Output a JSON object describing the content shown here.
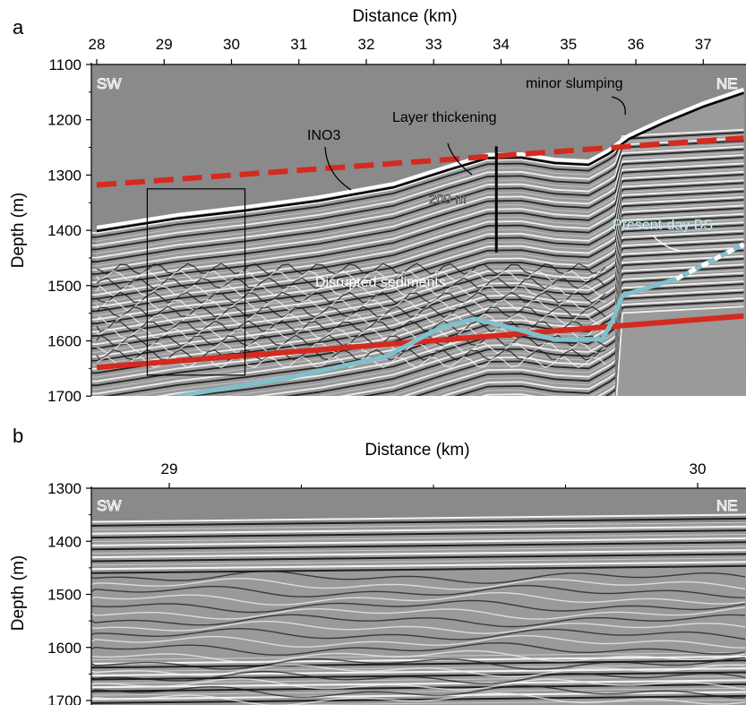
{
  "figure": {
    "panel_a": {
      "letter": "a",
      "x_title": "Distance (km)",
      "y_title": "Depth (m)",
      "x_ticks": [
        "28",
        "29",
        "30",
        "31",
        "32",
        "33",
        "34",
        "35",
        "36",
        "37"
      ],
      "y_ticks": [
        "1100",
        "1200",
        "1300",
        "1400",
        "1500",
        "1600",
        "1700"
      ],
      "corner_left": "SW",
      "corner_right": "NE",
      "annotations": {
        "minor_slumping": "minor slumping",
        "layer_thickening": "Layer thickening",
        "ino3": "INO3",
        "thickness": "200 m",
        "present_day_bsr": "Present-day BS",
        "disrupted": "Disrupted sediments"
      }
    },
    "panel_b": {
      "letter": "b",
      "x_title": "Distance (km)",
      "y_title": "Depth (m)",
      "x_ticks": [
        "29",
        "30"
      ],
      "y_ticks": [
        "1300",
        "1400",
        "1500",
        "1600",
        "1700"
      ],
      "corner_left": "SW",
      "corner_right": "NE"
    },
    "colors": {
      "seismic_background": "#8a8a8a",
      "red_reflector": "#d42a1f",
      "bsr_line": "#7fc0cc",
      "text_on_image": "#ffffff"
    }
  },
  "chart_data": [
    {
      "type": "line",
      "panel": "a",
      "xlabel": "Distance (km)",
      "ylabel": "Depth (m)",
      "xlim": [
        28,
        37.6
      ],
      "ylim": [
        1700,
        1100
      ],
      "series": [
        {
          "style": "red-dashed",
          "x": [
            28,
            37.6
          ],
          "y": [
            1318,
            1233
          ]
        },
        {
          "style": "red-solid",
          "x": [
            28,
            37.6
          ],
          "y": [
            1648,
            1555
          ]
        },
        {
          "style": "cyan",
          "x": [
            29.2,
            30.8,
            31.4,
            32.3,
            33.1,
            33.6,
            34.2,
            34.8,
            35.5,
            35.65,
            35.8,
            36.6
          ],
          "y": [
            1700,
            1668,
            1652,
            1628,
            1576,
            1560,
            1578,
            1598,
            1597,
            1565,
            1518,
            1488
          ]
        },
        {
          "style": "cyan-white-dashed",
          "x": [
            36.6,
            37.6
          ],
          "y": [
            1488,
            1425
          ]
        },
        {
          "style": "seafloor",
          "x": [
            28,
            29.2,
            30.2,
            31.3,
            32.4,
            33.2,
            33.8,
            34.3,
            34.8,
            35.3,
            35.6,
            35.9,
            36.4,
            37.0,
            37.6
          ],
          "y": [
            1395,
            1372,
            1358,
            1340,
            1316,
            1285,
            1263,
            1262,
            1272,
            1275,
            1255,
            1228,
            1200,
            1170,
            1145
          ]
        }
      ],
      "box": {
        "x": [
          28.75,
          30.2
        ],
        "y": [
          1325,
          1662
        ]
      },
      "thickness_bar": {
        "x": 33.93,
        "y": [
          1248,
          1440
        ]
      }
    },
    {
      "type": "line",
      "panel": "b",
      "xlabel": "Distance (km)",
      "ylabel": "Depth (m)",
      "xlim": [
        28.85,
        30.08
      ],
      "ylim": [
        1700,
        1300
      ]
    }
  ]
}
